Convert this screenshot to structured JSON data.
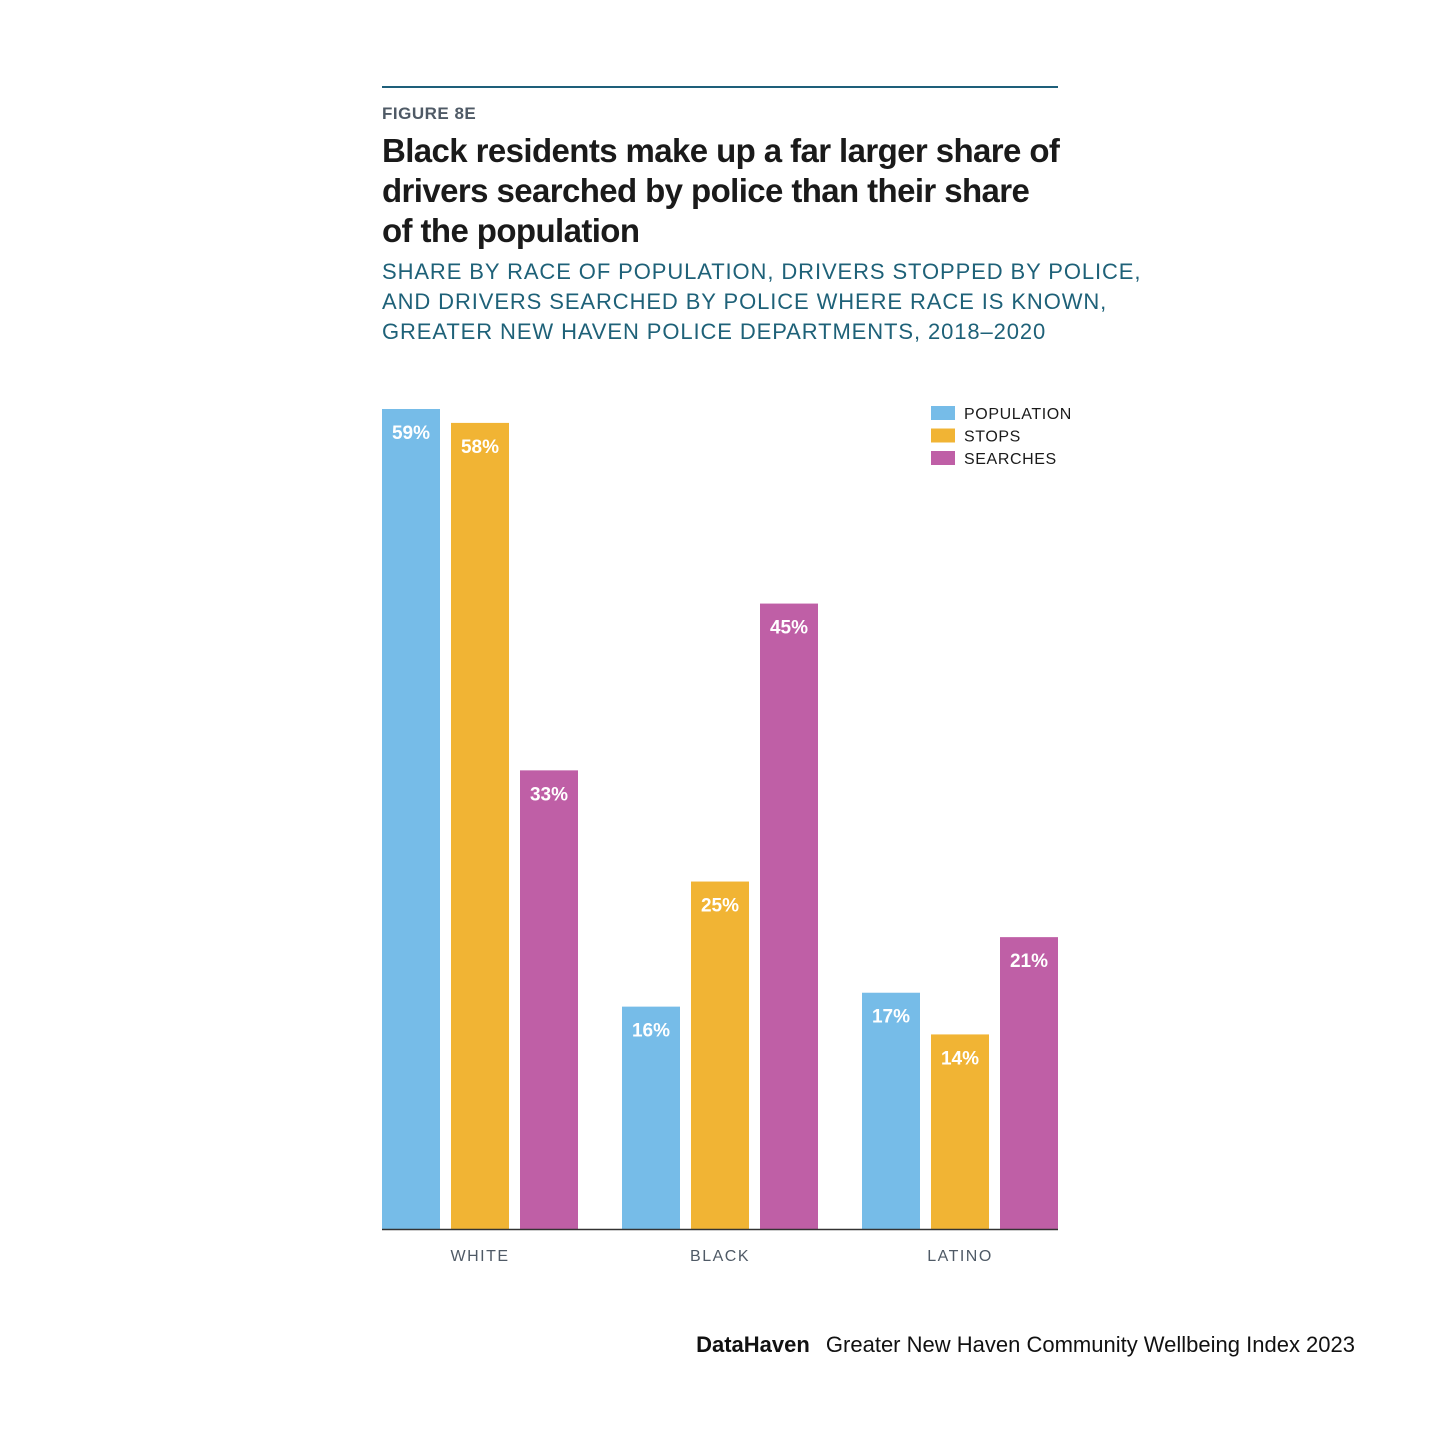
{
  "figure_label": "FIGURE 8E",
  "title_lines": [
    "Black residents make up a far larger share of",
    "drivers searched by police than their share",
    "of the population"
  ],
  "subtitle_lines": [
    "SHARE BY RACE OF POPULATION, DRIVERS STOPPED BY POLICE,",
    "AND DRIVERS SEARCHED BY POLICE WHERE RACE IS KNOWN,",
    "GREATER NEW HAVEN POLICE DEPARTMENTS, 2018–2020"
  ],
  "footer": {
    "brand": "DataHaven",
    "publication": "Greater New Haven Community Wellbeing Index 2023"
  },
  "chart_data": {
    "type": "bar",
    "categories": [
      "WHITE",
      "BLACK",
      "LATINO"
    ],
    "series": [
      {
        "name": "POPULATION",
        "color": "#76bce8",
        "values": [
          59,
          16,
          17
        ],
        "labels": [
          "59%",
          "16%",
          "17%"
        ]
      },
      {
        "name": "STOPS",
        "color": "#f1b434",
        "values": [
          58,
          25,
          14
        ],
        "labels": [
          "58%",
          "25%",
          "14%"
        ]
      },
      {
        "name": "SEARCHES",
        "color": "#bf5fa6",
        "values": [
          33,
          45,
          21
        ],
        "labels": [
          "33%",
          "45%",
          "21%"
        ]
      }
    ],
    "ylim": [
      0,
      59
    ],
    "grid": false,
    "legend_position": "top-right",
    "data_label_color": "#ffffff",
    "axis_color": "#333333"
  }
}
